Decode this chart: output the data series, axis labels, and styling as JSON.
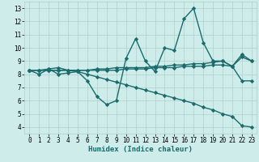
{
  "title": "",
  "xlabel": "Humidex (Indice chaleur)",
  "xlim": [
    -0.5,
    23.5
  ],
  "ylim": [
    3.5,
    13.5
  ],
  "xticks": [
    0,
    1,
    2,
    3,
    4,
    5,
    6,
    7,
    8,
    9,
    10,
    11,
    12,
    13,
    14,
    15,
    16,
    17,
    18,
    19,
    20,
    21,
    22,
    23
  ],
  "yticks": [
    4,
    5,
    6,
    7,
    8,
    9,
    10,
    11,
    12,
    13
  ],
  "bg_color": "#ceecea",
  "line_color": "#1a6b6b",
  "grid_color": "#b0cecc",
  "series": [
    [
      8.3,
      8.0,
      8.4,
      8.0,
      8.1,
      8.2,
      7.5,
      6.3,
      5.7,
      6.0,
      9.2,
      10.7,
      9.0,
      8.2,
      10.0,
      9.8,
      12.2,
      13.0,
      10.4,
      9.0,
      9.0,
      8.6,
      7.5,
      7.5
    ],
    [
      8.3,
      8.3,
      8.4,
      8.5,
      8.3,
      8.3,
      8.3,
      8.4,
      8.4,
      8.5,
      8.5,
      8.5,
      8.5,
      8.6,
      8.6,
      8.7,
      8.7,
      8.8,
      8.8,
      8.9,
      9.0,
      8.6,
      9.5,
      9.0
    ],
    [
      8.3,
      8.3,
      8.3,
      8.3,
      8.3,
      8.3,
      8.3,
      8.3,
      8.3,
      8.3,
      8.4,
      8.4,
      8.4,
      8.5,
      8.5,
      8.5,
      8.6,
      8.6,
      8.6,
      8.7,
      8.7,
      8.6,
      9.3,
      9.0
    ],
    [
      8.3,
      8.3,
      8.3,
      8.3,
      8.3,
      8.2,
      8.0,
      7.8,
      7.6,
      7.4,
      7.2,
      7.0,
      6.8,
      6.6,
      6.4,
      6.2,
      6.0,
      5.8,
      5.5,
      5.3,
      5.0,
      4.8,
      4.1,
      4.0
    ]
  ],
  "marker": "D",
  "markersize": 2.2,
  "linewidth": 1.0,
  "tick_fontsize": 5.5,
  "xlabel_fontsize": 6.5
}
